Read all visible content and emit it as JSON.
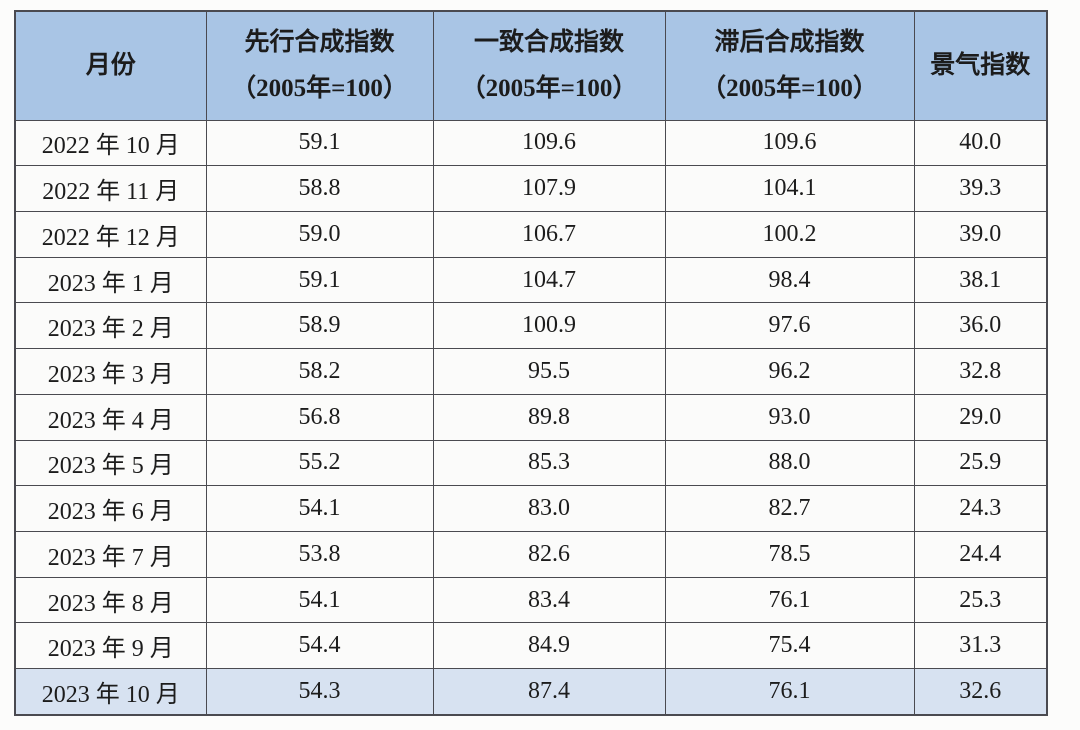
{
  "table": {
    "columns": [
      {
        "title": "月份",
        "sub": ""
      },
      {
        "title": "先行合成指数",
        "sub": "（2005年=100）"
      },
      {
        "title": "一致合成指数",
        "sub": "（2005年=100）"
      },
      {
        "title": "滞后合成指数",
        "sub": "（2005年=100）"
      },
      {
        "title": "景气指数",
        "sub": ""
      }
    ],
    "rows": [
      {
        "month": "2022 年 10 月",
        "leading": "59.1",
        "coincident": "109.6",
        "lagging": "109.6",
        "prosperity": "40.0",
        "highlight": false
      },
      {
        "month": "2022 年 11 月",
        "leading": "58.8",
        "coincident": "107.9",
        "lagging": "104.1",
        "prosperity": "39.3",
        "highlight": false
      },
      {
        "month": "2022 年 12 月",
        "leading": "59.0",
        "coincident": "106.7",
        "lagging": "100.2",
        "prosperity": "39.0",
        "highlight": false
      },
      {
        "month": "2023 年 1 月",
        "leading": "59.1",
        "coincident": "104.7",
        "lagging": "98.4",
        "prosperity": "38.1",
        "highlight": false
      },
      {
        "month": "2023 年 2 月",
        "leading": "58.9",
        "coincident": "100.9",
        "lagging": "97.6",
        "prosperity": "36.0",
        "highlight": false
      },
      {
        "month": "2023 年 3 月",
        "leading": "58.2",
        "coincident": "95.5",
        "lagging": "96.2",
        "prosperity": "32.8",
        "highlight": false
      },
      {
        "month": "2023 年 4 月",
        "leading": "56.8",
        "coincident": "89.8",
        "lagging": "93.0",
        "prosperity": "29.0",
        "highlight": false
      },
      {
        "month": "2023 年 5 月",
        "leading": "55.2",
        "coincident": "85.3",
        "lagging": "88.0",
        "prosperity": "25.9",
        "highlight": false
      },
      {
        "month": "2023 年 6 月",
        "leading": "54.1",
        "coincident": "83.0",
        "lagging": "82.7",
        "prosperity": "24.3",
        "highlight": false
      },
      {
        "month": "2023 年 7 月",
        "leading": "53.8",
        "coincident": "82.6",
        "lagging": "78.5",
        "prosperity": "24.4",
        "highlight": false
      },
      {
        "month": "2023 年 8 月",
        "leading": "54.1",
        "coincident": "83.4",
        "lagging": "76.1",
        "prosperity": "25.3",
        "highlight": false
      },
      {
        "month": "2023 年 9 月",
        "leading": "54.4",
        "coincident": "84.9",
        "lagging": "75.4",
        "prosperity": "31.3",
        "highlight": false
      },
      {
        "month": "2023 年 10 月",
        "leading": "54.3",
        "coincident": "87.4",
        "lagging": "76.1",
        "prosperity": "32.6",
        "highlight": true
      }
    ]
  },
  "chart_data": {
    "type": "table",
    "title": "",
    "columns": [
      "月份",
      "先行合成指数（2005年=100）",
      "一致合成指数（2005年=100）",
      "滞后合成指数（2005年=100）",
      "景气指数"
    ],
    "rows": [
      [
        "2022 年 10 月",
        59.1,
        109.6,
        109.6,
        40.0
      ],
      [
        "2022 年 11 月",
        58.8,
        107.9,
        104.1,
        39.3
      ],
      [
        "2022 年 12 月",
        59.0,
        106.7,
        100.2,
        39.0
      ],
      [
        "2023 年 1 月",
        59.1,
        104.7,
        98.4,
        38.1
      ],
      [
        "2023 年 2 月",
        58.9,
        100.9,
        97.6,
        36.0
      ],
      [
        "2023 年 3 月",
        58.2,
        95.5,
        96.2,
        32.8
      ],
      [
        "2023 年 4 月",
        56.8,
        89.8,
        93.0,
        29.0
      ],
      [
        "2023 年 5 月",
        55.2,
        85.3,
        88.0,
        25.9
      ],
      [
        "2023 年 6 月",
        54.1,
        83.0,
        82.7,
        24.3
      ],
      [
        "2023 年 7 月",
        53.8,
        82.6,
        78.5,
        24.4
      ],
      [
        "2023 年 8 月",
        54.1,
        83.4,
        76.1,
        25.3
      ],
      [
        "2023 年 9 月",
        54.4,
        84.9,
        75.4,
        31.3
      ],
      [
        "2023 年 10 月",
        54.3,
        87.4,
        76.1,
        32.6
      ]
    ],
    "highlighted_row": "2023 年 10 月"
  },
  "colors": {
    "header_bg": "#a9c5e5",
    "highlight_row_bg": "#d7e2f1",
    "border_color": "#4a4a50",
    "text_color": "#1c1c1c",
    "page_bg": "#fcfcfb",
    "cell_bg": "#fbfbfa"
  }
}
